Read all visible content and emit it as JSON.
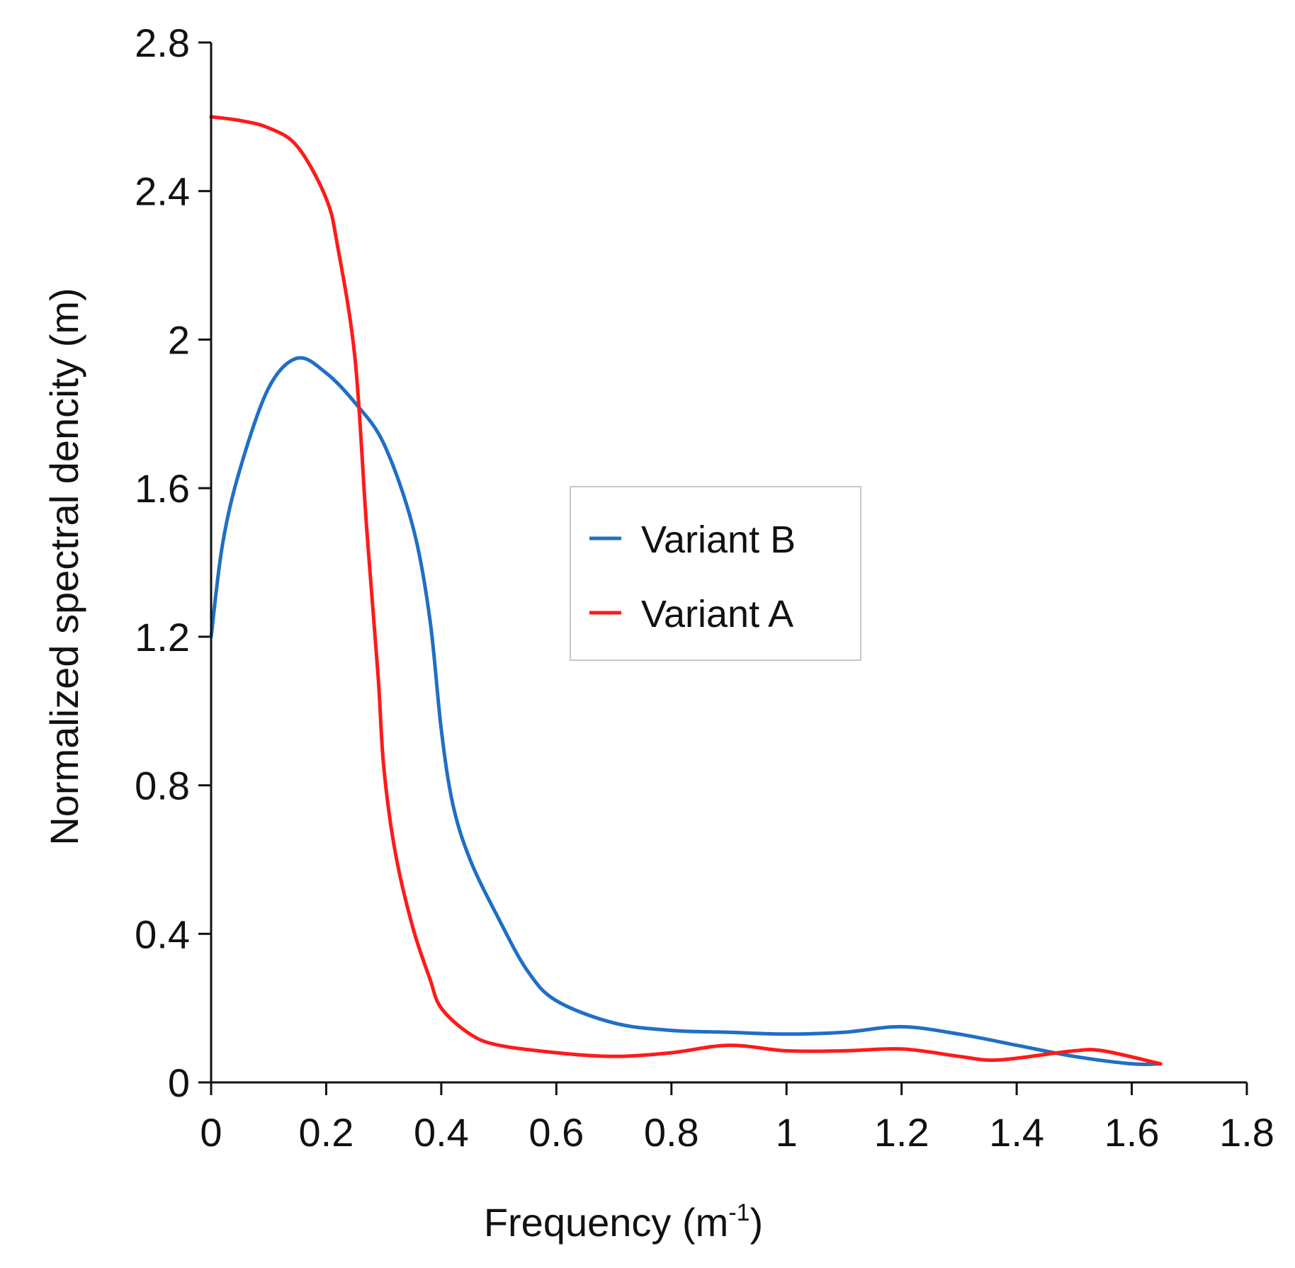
{
  "chart_data": {
    "type": "line",
    "xlabel": "Frequency (m",
    "xlabel_superscript": "-1",
    "xlabel_suffix": ")",
    "ylabel": "Normalized spectral dencity (m)",
    "xlim": [
      0,
      1.8
    ],
    "ylim": [
      0,
      2.8
    ],
    "xticks": [
      0,
      0.2,
      0.4,
      0.6,
      0.8,
      1,
      1.2,
      1.4,
      1.6,
      1.8
    ],
    "xtick_labels": [
      "0",
      "0.2",
      "0.4",
      "0.6",
      "0.8",
      "1",
      "1.2",
      "1.4",
      "1.6",
      "1.8"
    ],
    "yticks": [
      0,
      0.4,
      0.8,
      1.2,
      1.6,
      2,
      2.4,
      2.8
    ],
    "ytick_labels": [
      "0",
      "0.4",
      "0.8",
      "1.2",
      "1.6",
      "2",
      "2.4",
      "2.8"
    ],
    "grid": false,
    "legend_position": "center-right",
    "series": [
      {
        "name": "Variant B",
        "color": "#1f6fc5",
        "x": [
          0,
          0.02,
          0.05,
          0.1,
          0.15,
          0.2,
          0.25,
          0.3,
          0.35,
          0.38,
          0.4,
          0.42,
          0.45,
          0.5,
          0.55,
          0.6,
          0.7,
          0.8,
          0.9,
          1.0,
          1.1,
          1.2,
          1.3,
          1.4,
          1.5,
          1.6,
          1.65
        ],
        "y": [
          1.2,
          1.45,
          1.65,
          1.87,
          1.95,
          1.91,
          1.83,
          1.72,
          1.5,
          1.25,
          0.95,
          0.75,
          0.6,
          0.44,
          0.3,
          0.22,
          0.16,
          0.14,
          0.135,
          0.13,
          0.135,
          0.15,
          0.13,
          0.1,
          0.07,
          0.05,
          0.05
        ]
      },
      {
        "name": "Variant A",
        "color": "#ff1a1a",
        "x": [
          0,
          0.05,
          0.1,
          0.15,
          0.2,
          0.22,
          0.25,
          0.27,
          0.29,
          0.3,
          0.32,
          0.35,
          0.38,
          0.4,
          0.45,
          0.5,
          0.6,
          0.7,
          0.8,
          0.9,
          1.0,
          1.1,
          1.2,
          1.3,
          1.35,
          1.4,
          1.5,
          1.55,
          1.65
        ],
        "y": [
          2.6,
          2.59,
          2.57,
          2.52,
          2.38,
          2.25,
          1.95,
          1.5,
          1.1,
          0.85,
          0.62,
          0.42,
          0.28,
          0.2,
          0.13,
          0.1,
          0.08,
          0.07,
          0.08,
          0.1,
          0.085,
          0.085,
          0.09,
          0.07,
          0.06,
          0.065,
          0.085,
          0.085,
          0.05
        ]
      }
    ]
  }
}
